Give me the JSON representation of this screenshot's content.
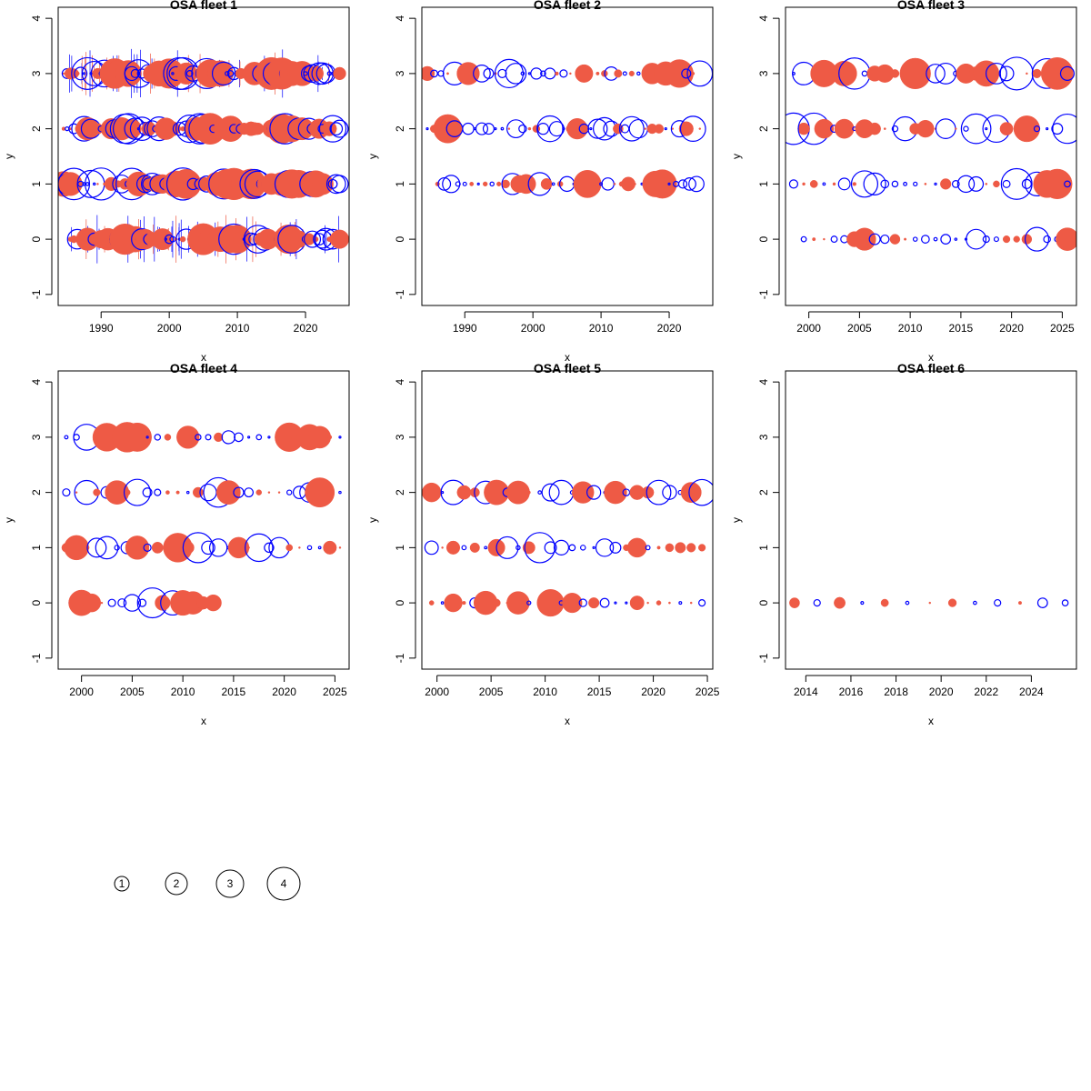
{
  "colors": {
    "positive": "#EE5A45",
    "negative": "#0000FF",
    "frame": "#000000"
  },
  "legend": {
    "labels": [
      "1",
      "2",
      "3",
      "4"
    ]
  },
  "chart_data": [
    {
      "type": "scatter",
      "title": "OSA fleet 1",
      "xlabel": "x",
      "ylabel": "y",
      "xlim": [
        1983.7,
        2026.4
      ],
      "ylim": [
        -1.2,
        4.2
      ],
      "xticks": [
        1990,
        2000,
        2010,
        2020
      ],
      "yticks": [
        -1,
        0,
        1,
        2,
        3,
        4
      ],
      "series": [
        {
          "x_start": 1984.5,
          "x_step": 0.5,
          "y_values": [
            0,
            1,
            2,
            3
          ],
          "seed": 11,
          "count_by_y": [
            80,
            82,
            82,
            82
          ],
          "x_start_by_y": [
            1985.5,
            1984.5,
            1984.5,
            1984.5
          ],
          "max_r": 18
        }
      ],
      "vertical_lines": {
        "y": [
          0,
          3
        ],
        "count": 55
      }
    },
    {
      "type": "scatter",
      "title": "OSA fleet 2",
      "xlabel": "x",
      "ylabel": "y",
      "xlim": [
        1983.7,
        2026.4
      ],
      "ylim": [
        -1.2,
        4.2
      ],
      "xticks": [
        1990,
        2000,
        2010,
        2020
      ],
      "yticks": [
        -1,
        0,
        1,
        2,
        3,
        4
      ],
      "series": [
        {
          "x_start": 1984.5,
          "x_step": 1,
          "y_values": [
            1,
            2,
            3
          ],
          "seed": 23,
          "count_by_y": [
            39,
            41,
            41
          ],
          "x_start_by_y": [
            1986.0,
            1984.5,
            1984.5
          ],
          "max_r": 16
        }
      ]
    },
    {
      "type": "scatter",
      "title": "OSA fleet 3",
      "xlabel": "x",
      "ylabel": "y",
      "xlim": [
        1997.7,
        2026.4
      ],
      "ylim": [
        -1.2,
        4.2
      ],
      "xticks": [
        2000,
        2005,
        2010,
        2015,
        2020,
        2025
      ],
      "yticks": [
        -1,
        0,
        1,
        2,
        3,
        4
      ],
      "series": [
        {
          "x_start": 1998.5,
          "x_step": 1,
          "y_values": [
            0,
            1,
            2,
            3
          ],
          "seed": 37,
          "count_by_y": [
            27,
            28,
            28,
            28
          ],
          "x_start_by_y": [
            1999.5,
            1998.5,
            1998.5,
            1998.5
          ],
          "max_r": 19
        }
      ]
    },
    {
      "type": "scatter",
      "title": "OSA fleet 4",
      "xlabel": "x",
      "ylabel": "y",
      "xlim": [
        1997.7,
        2026.4
      ],
      "ylim": [
        -1.2,
        4.2
      ],
      "xticks": [
        2000,
        2005,
        2010,
        2015,
        2020,
        2025
      ],
      "yticks": [
        -1,
        0,
        1,
        2,
        3,
        4
      ],
      "series": [
        {
          "x_start": 1998.5,
          "x_step": 1,
          "y_values": [
            0,
            1,
            2,
            3
          ],
          "seed": 41,
          "count_by_y": [
            15,
            28,
            28,
            28
          ],
          "x_start_by_y": [
            1999.0,
            1998.5,
            1998.5,
            1998.5
          ],
          "max_r": 17
        }
      ]
    },
    {
      "type": "scatter",
      "title": "OSA fleet 5",
      "xlabel": "x",
      "ylabel": "y",
      "xlim": [
        1998.6,
        2025.5
      ],
      "ylim": [
        -1.2,
        4.2
      ],
      "xticks": [
        2000,
        2005,
        2010,
        2015,
        2020,
        2025
      ],
      "yticks": [
        -1,
        0,
        1,
        2,
        3,
        4
      ],
      "series": [
        {
          "x_start": 1999.5,
          "x_step": 1,
          "y_values": [
            0,
            1,
            2
          ],
          "seed": 53,
          "count_by_y": [
            26,
            26,
            26
          ],
          "x_start_by_y": [
            1999.5,
            1999.5,
            1999.5
          ],
          "max_r": 17
        }
      ]
    },
    {
      "type": "scatter",
      "title": "OSA fleet 6",
      "xlabel": "x",
      "ylabel": "y",
      "xlim": [
        2013.1,
        2026.0
      ],
      "ylim": [
        -1.2,
        4.2
      ],
      "xticks": [
        2014,
        2016,
        2018,
        2020,
        2022,
        2024
      ],
      "yticks": [
        -1,
        0,
        1,
        2,
        3,
        4
      ],
      "points": [
        {
          "x": 2013.5,
          "y": 0,
          "r": 1.9,
          "sign": "pos"
        },
        {
          "x": 2014.5,
          "y": 0,
          "r": 1.2,
          "sign": "neg"
        },
        {
          "x": 2015.5,
          "y": 0,
          "r": 2.1,
          "sign": "pos"
        },
        {
          "x": 2016.5,
          "y": 0,
          "r": 0.5,
          "sign": "neg"
        },
        {
          "x": 2017.5,
          "y": 0,
          "r": 1.4,
          "sign": "pos"
        },
        {
          "x": 2018.5,
          "y": 0,
          "r": 0.6,
          "sign": "neg"
        },
        {
          "x": 2019.5,
          "y": 0,
          "r": 0.3,
          "sign": "pos"
        },
        {
          "x": 2020.5,
          "y": 0,
          "r": 1.5,
          "sign": "pos"
        },
        {
          "x": 2021.5,
          "y": 0,
          "r": 0.6,
          "sign": "neg"
        },
        {
          "x": 2022.5,
          "y": 0,
          "r": 1.2,
          "sign": "neg"
        },
        {
          "x": 2023.5,
          "y": 0,
          "r": 0.6,
          "sign": "pos"
        },
        {
          "x": 2024.5,
          "y": 0,
          "r": 1.8,
          "sign": "neg"
        },
        {
          "x": 2025.5,
          "y": 0,
          "r": 1.1,
          "sign": "neg"
        }
      ]
    }
  ]
}
